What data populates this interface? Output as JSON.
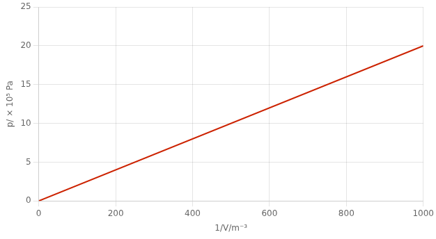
{
  "chart_data": {
    "type": "line",
    "x_label": "1/V/m⁻³",
    "y_label": "p/ × 10⁵ Pa",
    "x": [
      0,
      1000
    ],
    "values": [
      0,
      20
    ],
    "color": "#cc2200",
    "xlim": [
      0,
      1000
    ],
    "xticks": [
      0,
      200,
      400,
      600,
      800,
      1000
    ],
    "ylim": [
      0,
      25
    ],
    "yticks": [
      0,
      5,
      10,
      15,
      20,
      25
    ],
    "grid": true
  }
}
